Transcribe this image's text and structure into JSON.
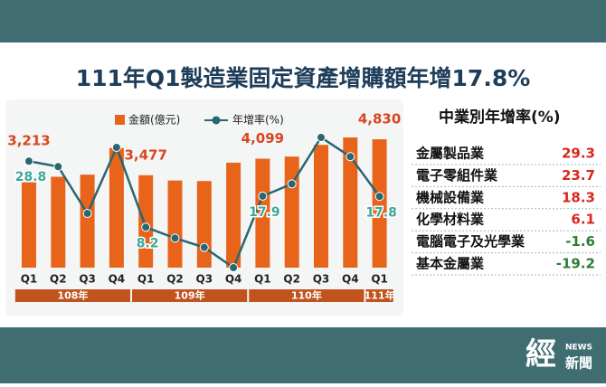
{
  "chart_data": {
    "type": "bar",
    "title": "111年Q1製造業固定資產增購額年增17.8%",
    "groups": [
      {
        "label": "108年",
        "categories": [
          "Q1",
          "Q2",
          "Q3",
          "Q4"
        ]
      },
      {
        "label": "109年",
        "categories": [
          "Q1",
          "Q2",
          "Q3",
          "Q4"
        ]
      },
      {
        "label": "110年",
        "categories": [
          "Q1",
          "Q2",
          "Q3",
          "Q4"
        ]
      },
      {
        "label": "111年",
        "categories": [
          "Q1"
        ]
      }
    ],
    "series": [
      {
        "name": "金額(億元)",
        "type": "bar",
        "color": "#e8641b",
        "label_color": "#d9461e",
        "values": [
          3213,
          3420,
          3500,
          4500,
          3477,
          3280,
          3260,
          3950,
          4099,
          4180,
          4620,
          4900,
          4830
        ],
        "value_labels": [
          "3,213",
          null,
          null,
          null,
          "3,477",
          null,
          null,
          null,
          "4,099",
          null,
          null,
          null,
          "4,830"
        ]
      },
      {
        "name": "年增率(%)",
        "type": "line",
        "color": "#2a6670",
        "label_color": "#3aa89a",
        "values": [
          28.8,
          27.1,
          12.5,
          33.1,
          8.2,
          4.8,
          1.9,
          -4.4,
          17.9,
          21.7,
          36.2,
          30.2,
          17.8
        ],
        "value_labels": [
          "28.8",
          null,
          null,
          null,
          "8.2",
          null,
          null,
          null,
          "17.9",
          null,
          null,
          null,
          "17.8"
        ]
      }
    ]
  },
  "table": {
    "title": "中業別年增率(%)",
    "positive_color": "#d9261c",
    "negative_color": "#2e7d32",
    "rows": [
      [
        "金屬製品業",
        29.3
      ],
      [
        "電子零組件業",
        23.7
      ],
      [
        "機械設備業",
        18.3
      ],
      [
        "化學材料業",
        6.1
      ],
      [
        "電腦電子及光學業",
        -1.6
      ],
      [
        "基本金屬業",
        -19.2
      ]
    ]
  },
  "logo": {
    "mark": "經",
    "news": "NEWS",
    "name": "新聞"
  }
}
